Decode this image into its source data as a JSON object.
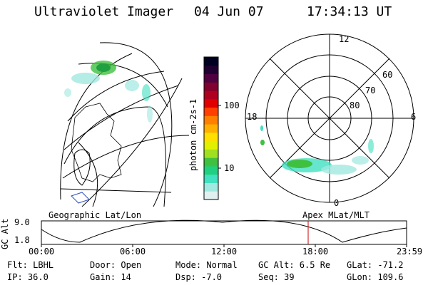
{
  "header": {
    "title": "Ultraviolet Imager",
    "date": "04 Jun 07",
    "time": "17:34:13 UT"
  },
  "colorbar": {
    "unit_label": "photon cm-2s-1",
    "ticks": [
      "100",
      "10"
    ],
    "colors": [
      "#e0f0f0",
      "#a0e8e0",
      "#40e0c0",
      "#20d080",
      "#40c040",
      "#a0e020",
      "#e0f000",
      "#ffe000",
      "#ffb000",
      "#ff8000",
      "#ff4000",
      "#e00000",
      "#b00020",
      "#800030",
      "#500040",
      "#200030",
      "#000020"
    ]
  },
  "polar_plot": {
    "mlt_labels": {
      "top": "12",
      "bottom": "0",
      "left": "18",
      "right": "6"
    },
    "lat_labels": [
      "60",
      "70",
      "80"
    ]
  },
  "timeline": {
    "left_label": "Geographic Lat/Lon",
    "right_label": "Apex  MLat/MLT",
    "axis_title": "GC Alt",
    "y_ticks": [
      "9.0",
      "1.8"
    ],
    "x_ticks": [
      "00:00",
      "06:00",
      "12:00",
      "18:00",
      "23:59"
    ],
    "marker_color": "#cc0000"
  },
  "info": {
    "flt": "Flt: LBHL",
    "door": "Door: Open",
    "mode": "Mode: Normal",
    "gc_alt": "GC Alt: 6.5 Re",
    "glat": "GLat: -71.2",
    "ip": "IP: 36.0",
    "gain": "Gain: 14",
    "dsp": "Dsp:    -7.0",
    "seq": "Seq: 39",
    "glon": "GLon: 109.6"
  }
}
